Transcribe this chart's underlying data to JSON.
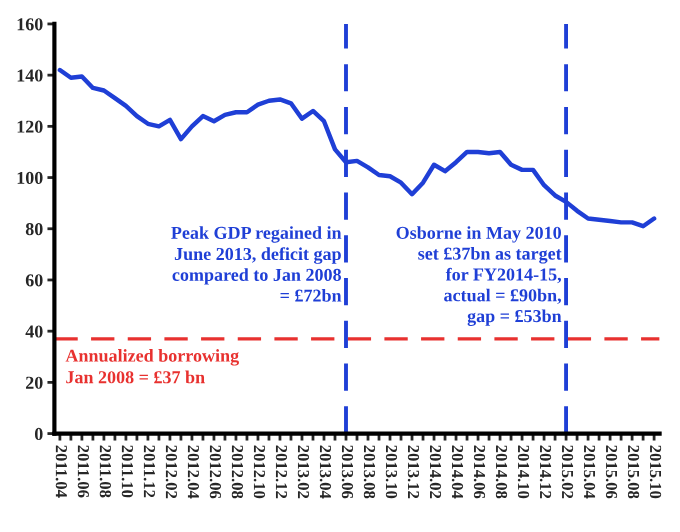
{
  "chart_data": {
    "type": "line",
    "categories": [
      "2011.04",
      null,
      "2011.06",
      null,
      "2011.08",
      null,
      "2011.10",
      null,
      "2011.12",
      null,
      "2012.02",
      null,
      "2012.04",
      null,
      "2012.06",
      null,
      "2012.08",
      null,
      "2012.10",
      null,
      "2012.12",
      null,
      "2013.02",
      null,
      "2013.04",
      null,
      "2013.06",
      null,
      "2013.08",
      null,
      "2013.10",
      null,
      "2013.12",
      null,
      "2014.02",
      null,
      "2014.04",
      null,
      "2014.06",
      null,
      "2014.08",
      null,
      "2014.10",
      null,
      "2014.12",
      null,
      "2015.02",
      null,
      "2015.04",
      null,
      "2015.06",
      null,
      "2015.08",
      null,
      "2015.10"
    ],
    "series": [
      {
        "color": "#1f3fd6",
        "values": [
          142,
          139,
          139.5,
          135,
          134,
          131,
          128,
          124,
          121,
          120,
          122.5,
          115,
          120,
          124,
          122,
          124.5,
          125.5,
          125.5,
          128.5,
          130,
          130.5,
          129,
          123,
          126,
          122,
          111,
          106,
          106.5,
          104,
          101,
          100.5,
          98,
          93.5,
          98,
          105,
          102.5,
          106,
          110,
          110,
          109.5,
          110,
          105,
          103,
          103,
          97,
          93,
          90.5,
          87,
          84,
          83.5,
          83,
          82.5,
          82.5,
          81,
          84
        ]
      }
    ],
    "ylim": [
      0,
      160
    ],
    "yticks": [
      0,
      20,
      40,
      60,
      80,
      100,
      120,
      140,
      160
    ],
    "grid": false,
    "legend": false,
    "marker": "none",
    "line_style": "solid",
    "ref_lines": [
      {
        "axis": "y",
        "value": 37,
        "color": "#e8312f",
        "line_style": "dashed",
        "label": "Annualized borrowing\nJan 2008 = £37 bn"
      },
      {
        "axis": "x",
        "value": "2013.06",
        "color": "#1f3fd6",
        "line_style": "dashed",
        "label": "Peak GDP regained in\nJune 2013, deficit gap\ncompared to Jan 2008\n= £72bn"
      },
      {
        "axis": "x",
        "value": "2015.02",
        "color": "#1f3fd6",
        "line_style": "dashed",
        "label": "Osborne in May 2010\nset £37bn as target\nfor FY2014-15,\nactual = £90bn,\ngap = £53bn"
      }
    ]
  }
}
